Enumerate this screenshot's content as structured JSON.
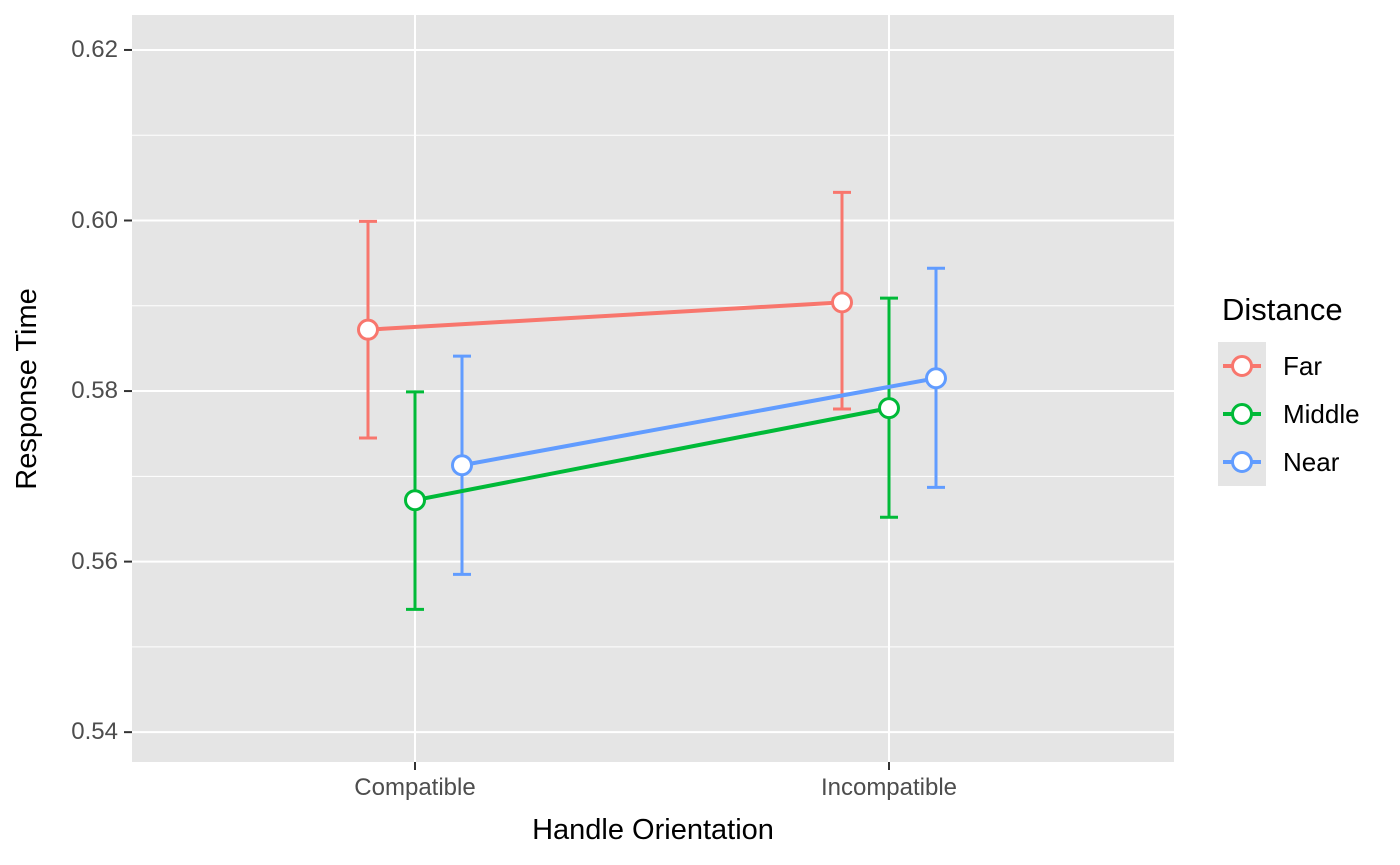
{
  "chart_data": {
    "type": "line",
    "title": "",
    "xlabel": "Handle Orientation",
    "ylabel": "Response Time",
    "categories": [
      "Compatible",
      "Incompatible"
    ],
    "y_ticks": [
      0.54,
      0.56,
      0.58,
      0.6,
      0.62
    ],
    "y_tick_labels": [
      "0.54",
      "0.56",
      "0.58",
      "0.60",
      "0.62"
    ],
    "ylim": [
      0.5365,
      0.6241
    ],
    "grid": true,
    "legend_title": "Distance",
    "legend_position": "right",
    "panel_background": "#E5E5E5",
    "gridline_color": "#FFFFFF",
    "tick_mark_color": "#333333",
    "tick_label_color": "#4d4d4d",
    "point_fill": "#FFFFFF",
    "series": [
      {
        "name": "Far",
        "color": "#F8766D",
        "means": [
          0.5872,
          0.5904
        ],
        "lower": [
          0.5745,
          0.5779
        ],
        "upper": [
          0.5999,
          0.6033
        ]
      },
      {
        "name": "Middle",
        "color": "#00BA38",
        "means": [
          0.5672,
          0.578
        ],
        "lower": [
          0.5544,
          0.5652
        ],
        "upper": [
          0.5799,
          0.5909
        ]
      },
      {
        "name": "Near",
        "color": "#619CFF",
        "means": [
          0.5713,
          0.5815
        ],
        "lower": [
          0.5585,
          0.5687
        ],
        "upper": [
          0.5841,
          0.5944
        ]
      }
    ]
  }
}
